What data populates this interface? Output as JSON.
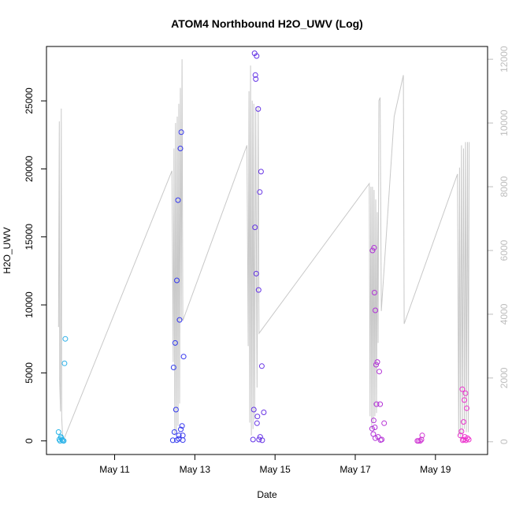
{
  "chart_data": {
    "type": "scatter",
    "title": "ATOM4 Northbound H2O_UWV (Log)",
    "xlabel": "Date",
    "ylabel": "H2O_UWV",
    "x_unit": "days since May 9 00:00",
    "xlim": [
      9.3,
      20.3
    ],
    "ylim": [
      -1000,
      29000
    ],
    "y2lim": [
      -400,
      12400
    ],
    "x_ticks": [
      {
        "value": 11,
        "label": "May 11"
      },
      {
        "value": 13,
        "label": "May 13"
      },
      {
        "value": 15,
        "label": "May 15"
      },
      {
        "value": 17,
        "label": "May 17"
      },
      {
        "value": 19,
        "label": "May 19"
      }
    ],
    "y_ticks": [
      {
        "value": 0,
        "label": "0"
      },
      {
        "value": 5000,
        "label": "5000"
      },
      {
        "value": 10000,
        "label": "10000"
      },
      {
        "value": 15000,
        "label": "15000"
      },
      {
        "value": 20000,
        "label": "20000"
      },
      {
        "value": 25000,
        "label": "25000"
      }
    ],
    "y2_ticks": [
      {
        "value": 0,
        "label": "0"
      },
      {
        "value": 2000,
        "label": "2000"
      },
      {
        "value": 4000,
        "label": "4000"
      },
      {
        "value": 6000,
        "label": "6000"
      },
      {
        "value": 8000,
        "label": "8000"
      },
      {
        "value": 10000,
        "label": "10000"
      },
      {
        "value": 12000,
        "label": "12000"
      }
    ],
    "colors": {
      "start": "#29b6e8",
      "mid": "#3434ee",
      "end": "#ee33cc",
      "line": "#c8c8c8",
      "right_axis": "#bdbdbd"
    },
    "points": [
      {
        "x": 9.6,
        "y": 650
      },
      {
        "x": 9.62,
        "y": 100
      },
      {
        "x": 9.64,
        "y": 0
      },
      {
        "x": 9.66,
        "y": 300
      },
      {
        "x": 9.67,
        "y": 200
      },
      {
        "x": 9.69,
        "y": 80
      },
      {
        "x": 9.71,
        "y": 20
      },
      {
        "x": 9.73,
        "y": 0
      },
      {
        "x": 9.75,
        "y": 5700
      },
      {
        "x": 9.77,
        "y": 7500
      },
      {
        "x": 12.45,
        "y": 50
      },
      {
        "x": 12.47,
        "y": 5400
      },
      {
        "x": 12.49,
        "y": 650
      },
      {
        "x": 12.51,
        "y": 7200
      },
      {
        "x": 12.53,
        "y": 2300
      },
      {
        "x": 12.55,
        "y": 11800
      },
      {
        "x": 12.58,
        "y": 17700
      },
      {
        "x": 12.6,
        "y": 400
      },
      {
        "x": 12.62,
        "y": 8900
      },
      {
        "x": 12.64,
        "y": 21500
      },
      {
        "x": 12.66,
        "y": 22700
      },
      {
        "x": 12.68,
        "y": 1100
      },
      {
        "x": 12.7,
        "y": 400
      },
      {
        "x": 12.72,
        "y": 6200
      },
      {
        "x": 12.55,
        "y": 60
      },
      {
        "x": 12.6,
        "y": 150
      },
      {
        "x": 12.65,
        "y": 850
      },
      {
        "x": 12.7,
        "y": 60
      },
      {
        "x": 14.45,
        "y": 100
      },
      {
        "x": 14.47,
        "y": 2300
      },
      {
        "x": 14.49,
        "y": 28500
      },
      {
        "x": 14.51,
        "y": 26900
      },
      {
        "x": 14.52,
        "y": 26600
      },
      {
        "x": 14.54,
        "y": 28300
      },
      {
        "x": 14.5,
        "y": 15700
      },
      {
        "x": 14.53,
        "y": 12300
      },
      {
        "x": 14.55,
        "y": 1300
      },
      {
        "x": 14.56,
        "y": 1800
      },
      {
        "x": 14.58,
        "y": 24400
      },
      {
        "x": 14.59,
        "y": 11100
      },
      {
        "x": 14.62,
        "y": 18300
      },
      {
        "x": 14.65,
        "y": 19800
      },
      {
        "x": 14.67,
        "y": 5500
      },
      {
        "x": 14.72,
        "y": 2100
      },
      {
        "x": 14.6,
        "y": 100
      },
      {
        "x": 14.63,
        "y": 300
      },
      {
        "x": 14.68,
        "y": 50
      },
      {
        "x": 17.42,
        "y": 900
      },
      {
        "x": 17.43,
        "y": 14000
      },
      {
        "x": 17.45,
        "y": 500
      },
      {
        "x": 17.46,
        "y": 1500
      },
      {
        "x": 17.47,
        "y": 14200
      },
      {
        "x": 17.48,
        "y": 10900
      },
      {
        "x": 17.49,
        "y": 1000
      },
      {
        "x": 17.5,
        "y": 9600
      },
      {
        "x": 17.52,
        "y": 5600
      },
      {
        "x": 17.53,
        "y": 2700
      },
      {
        "x": 17.55,
        "y": 5800
      },
      {
        "x": 17.57,
        "y": 300
      },
      {
        "x": 17.6,
        "y": 5100
      },
      {
        "x": 17.62,
        "y": 2700
      },
      {
        "x": 17.66,
        "y": 100
      },
      {
        "x": 17.72,
        "y": 1300
      },
      {
        "x": 17.5,
        "y": 200
      },
      {
        "x": 17.63,
        "y": 60
      },
      {
        "x": 18.55,
        "y": 0
      },
      {
        "x": 18.58,
        "y": 0
      },
      {
        "x": 18.62,
        "y": 0
      },
      {
        "x": 18.65,
        "y": 100
      },
      {
        "x": 18.67,
        "y": 400
      },
      {
        "x": 19.62,
        "y": 400
      },
      {
        "x": 19.65,
        "y": 700
      },
      {
        "x": 19.67,
        "y": 3800
      },
      {
        "x": 19.7,
        "y": 1400
      },
      {
        "x": 19.72,
        "y": 3000
      },
      {
        "x": 19.73,
        "y": 300
      },
      {
        "x": 19.75,
        "y": 3500
      },
      {
        "x": 19.78,
        "y": 2400
      },
      {
        "x": 19.8,
        "y": 200
      },
      {
        "x": 19.68,
        "y": 50
      },
      {
        "x": 19.71,
        "y": 100
      },
      {
        "x": 19.76,
        "y": 50
      },
      {
        "x": 19.83,
        "y": 100
      }
    ],
    "line_series": [
      [
        9.6,
        3600
      ],
      [
        9.62,
        10050
      ],
      [
        9.63,
        1900
      ],
      [
        9.65,
        950
      ],
      [
        9.67,
        10450
      ],
      [
        9.68,
        800
      ],
      [
        9.7,
        200
      ],
      [
        9.74,
        100
      ],
      [
        12.43,
        8500
      ],
      [
        12.46,
        2500
      ],
      [
        12.48,
        9200
      ],
      [
        12.5,
        200
      ],
      [
        12.52,
        10000
      ],
      [
        12.54,
        300
      ],
      [
        12.56,
        10200
      ],
      [
        12.58,
        500
      ],
      [
        12.6,
        10600
      ],
      [
        12.62,
        1200
      ],
      [
        12.64,
        11100
      ],
      [
        12.66,
        3800
      ],
      [
        12.68,
        12000
      ],
      [
        12.7,
        3800
      ],
      [
        14.3,
        9300
      ],
      [
        14.33,
        3000
      ],
      [
        14.35,
        11000
      ],
      [
        14.37,
        600
      ],
      [
        14.39,
        11800
      ],
      [
        14.41,
        200
      ],
      [
        14.43,
        10700
      ],
      [
        14.45,
        400
      ],
      [
        14.47,
        10600
      ],
      [
        14.49,
        700
      ],
      [
        14.52,
        10500
      ],
      [
        14.55,
        1700
      ],
      [
        14.58,
        10500
      ],
      [
        14.6,
        3400
      ],
      [
        17.35,
        8100
      ],
      [
        17.37,
        800
      ],
      [
        17.39,
        8000
      ],
      [
        17.41,
        400
      ],
      [
        17.43,
        8000
      ],
      [
        17.45,
        600
      ],
      [
        17.47,
        7900
      ],
      [
        17.49,
        800
      ],
      [
        17.51,
        7600
      ],
      [
        17.53,
        900
      ],
      [
        17.55,
        7200
      ],
      [
        17.57,
        3100
      ],
      [
        17.59,
        10700
      ],
      [
        17.62,
        10800
      ],
      [
        17.65,
        4100
      ],
      [
        17.97,
        10200
      ],
      [
        18.2,
        11500
      ],
      [
        18.22,
        3700
      ],
      [
        19.55,
        8400
      ],
      [
        19.58,
        200
      ],
      [
        19.6,
        8600
      ],
      [
        19.62,
        100
      ],
      [
        19.65,
        9300
      ],
      [
        19.67,
        200
      ],
      [
        19.7,
        9200
      ],
      [
        19.72,
        400
      ],
      [
        19.75,
        9400
      ],
      [
        19.77,
        300
      ],
      [
        19.8,
        9400
      ],
      [
        19.82,
        300
      ],
      [
        19.84,
        9400
      ]
    ]
  }
}
